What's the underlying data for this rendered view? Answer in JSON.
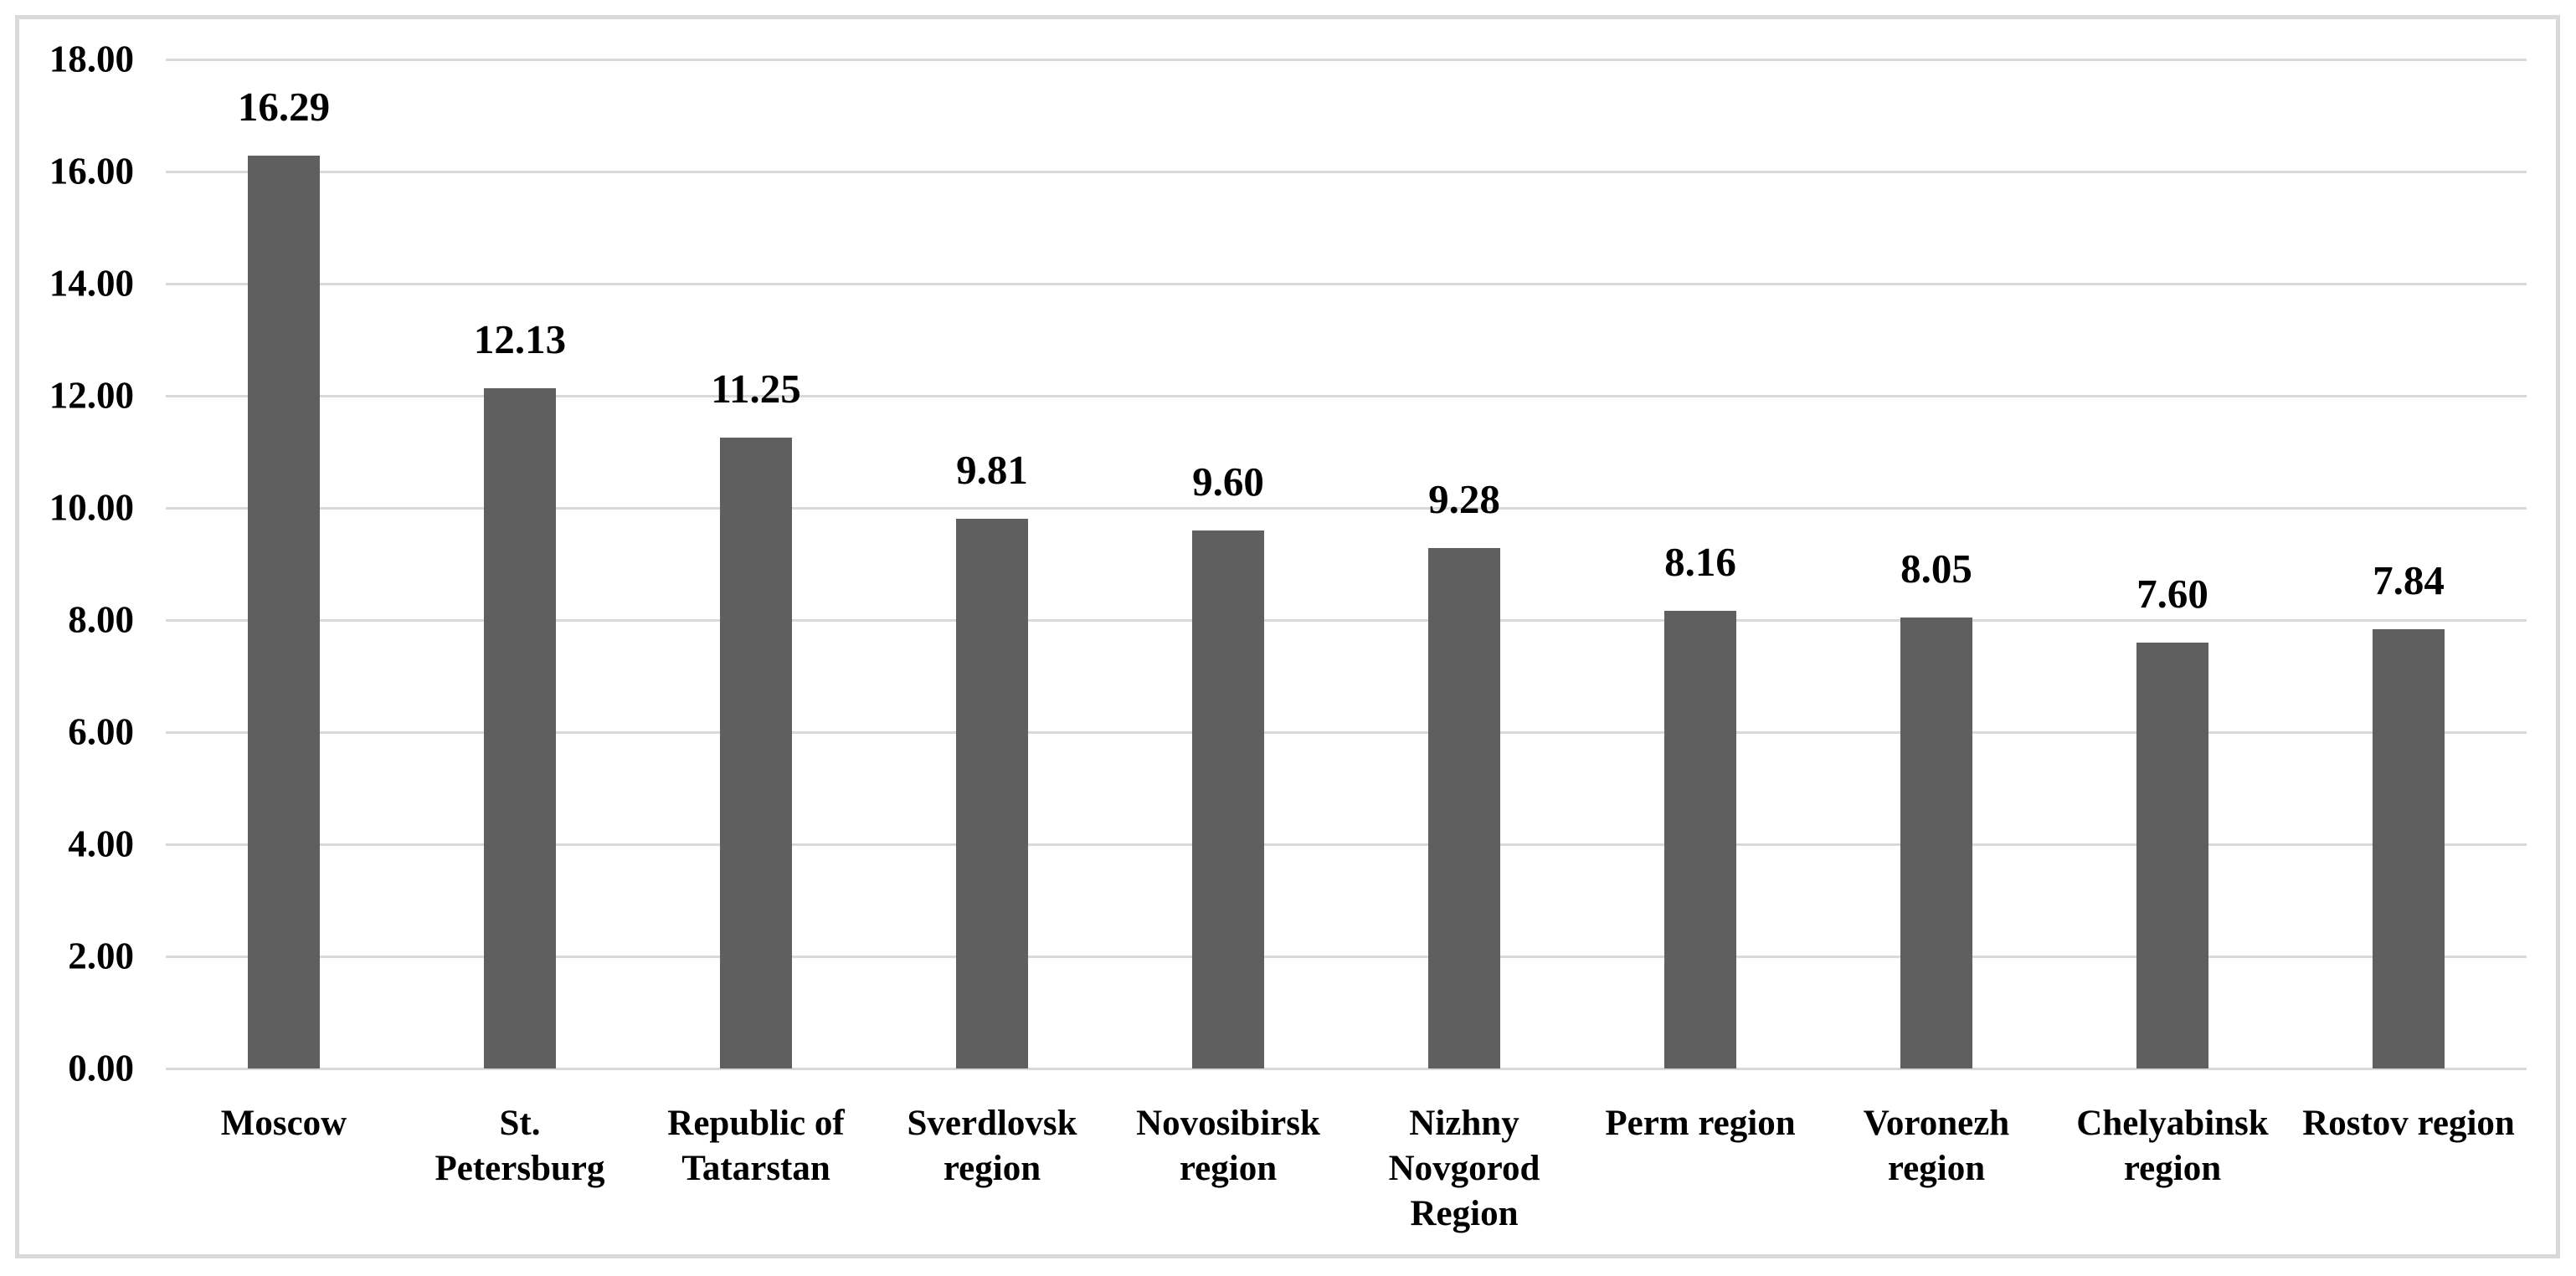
{
  "chart_data": {
    "type": "bar",
    "categories": [
      "Moscow",
      "St. Petersburg",
      "Republic of Tatarstan",
      "Sverdlovsk region",
      "Novosibirsk region",
      "Nizhny Novgorod Region",
      "Perm region",
      "Voronezh region",
      "Chelyabinsk region",
      "Rostov region"
    ],
    "values": [
      16.29,
      12.13,
      11.25,
      9.81,
      9.6,
      9.28,
      8.16,
      8.05,
      7.6,
      7.84
    ],
    "value_labels": [
      "16.29",
      "12.13",
      "11.25",
      "9.81",
      "9.60",
      "9.28",
      "8.16",
      "8.05",
      "7.60",
      "7.84"
    ],
    "y_tick_labels": [
      "0.00",
      "2.00",
      "4.00",
      "6.00",
      "8.00",
      "10.00",
      "12.00",
      "14.00",
      "16.00",
      "18.00"
    ],
    "title": "",
    "xlabel": "",
    "ylabel": "",
    "ylim": [
      0,
      18
    ],
    "ytick_step": 2,
    "grid": true,
    "legend": false,
    "bar_color": "#5f5f5f",
    "gridline_color": "#d9d9d9",
    "frame_border_color": "#d9d9d9",
    "text_color": "#000000",
    "background_color": "#ffffff"
  }
}
